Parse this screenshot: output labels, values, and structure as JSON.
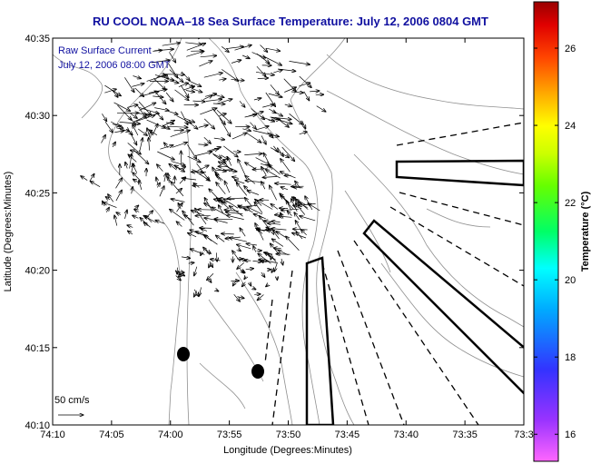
{
  "title": "RU COOL  NOAA–18  Sea Surface Temperature:  July 12, 2006 0804 GMT",
  "legend": {
    "line1": "Raw Surface Current",
    "line2": "July 12, 2006 08:00 GMT"
  },
  "scale_label": "50 cm/s",
  "axes": {
    "xlabel": "Longitude (Degrees:Minutes)",
    "ylabel": "Latitude (Degrees:Minutes)",
    "x_ticks": [
      "74:10",
      "74:05",
      "74:00",
      "73:55",
      "73:50",
      "73:45",
      "73:40",
      "73:35",
      "73:3"
    ],
    "y_ticks": [
      "40:35",
      "40:30",
      "40:25",
      "40:20",
      "40:15",
      "40:10"
    ]
  },
  "colorbar": {
    "label": "Temperature (°C)",
    "ticks": [
      "26",
      "24",
      "22",
      "20",
      "18",
      "16"
    ],
    "tick_values": [
      26,
      24,
      22,
      20,
      18,
      16
    ],
    "range": [
      15.3,
      27.2
    ]
  },
  "colors": {
    "title": "#1010a0",
    "legend_text": "#1010a0",
    "contour": "#909090",
    "vectors": "#000000"
  }
}
